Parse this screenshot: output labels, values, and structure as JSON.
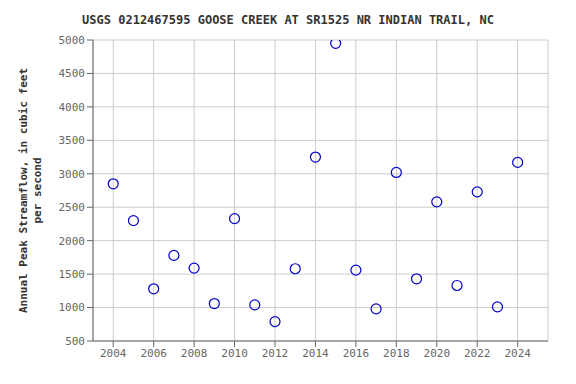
{
  "chart_data": {
    "type": "scatter",
    "title": "USGS 0212467595 GOOSE CREEK AT SR1525 NR INDIAN TRAIL, NC",
    "y_label": "Annual Peak Streamflow, in cubic feet\nper second",
    "x": [
      2004,
      2005,
      2006,
      2007,
      2008,
      2009,
      2010,
      2011,
      2012,
      2013,
      2014,
      2015,
      2016,
      2017,
      2018,
      2019,
      2020,
      2021,
      2022,
      2023,
      2024
    ],
    "values": [
      2850,
      2300,
      1280,
      1780,
      1590,
      1060,
      2330,
      1040,
      790,
      1580,
      3250,
      4950,
      1560,
      980,
      3020,
      1430,
      2580,
      1330,
      2730,
      1010,
      3170
    ],
    "color": "#0000cc",
    "marker": "circle",
    "xlim": [
      2003.0,
      2025.5
    ],
    "ylim": [
      500,
      5000
    ],
    "xticks": [
      2004,
      2006,
      2008,
      2010,
      2012,
      2014,
      2016,
      2018,
      2020,
      2022,
      2024
    ],
    "yticks": [
      500,
      1000,
      1500,
      2000,
      2500,
      3000,
      3500,
      4000,
      4500,
      5000
    ],
    "grid": true
  }
}
